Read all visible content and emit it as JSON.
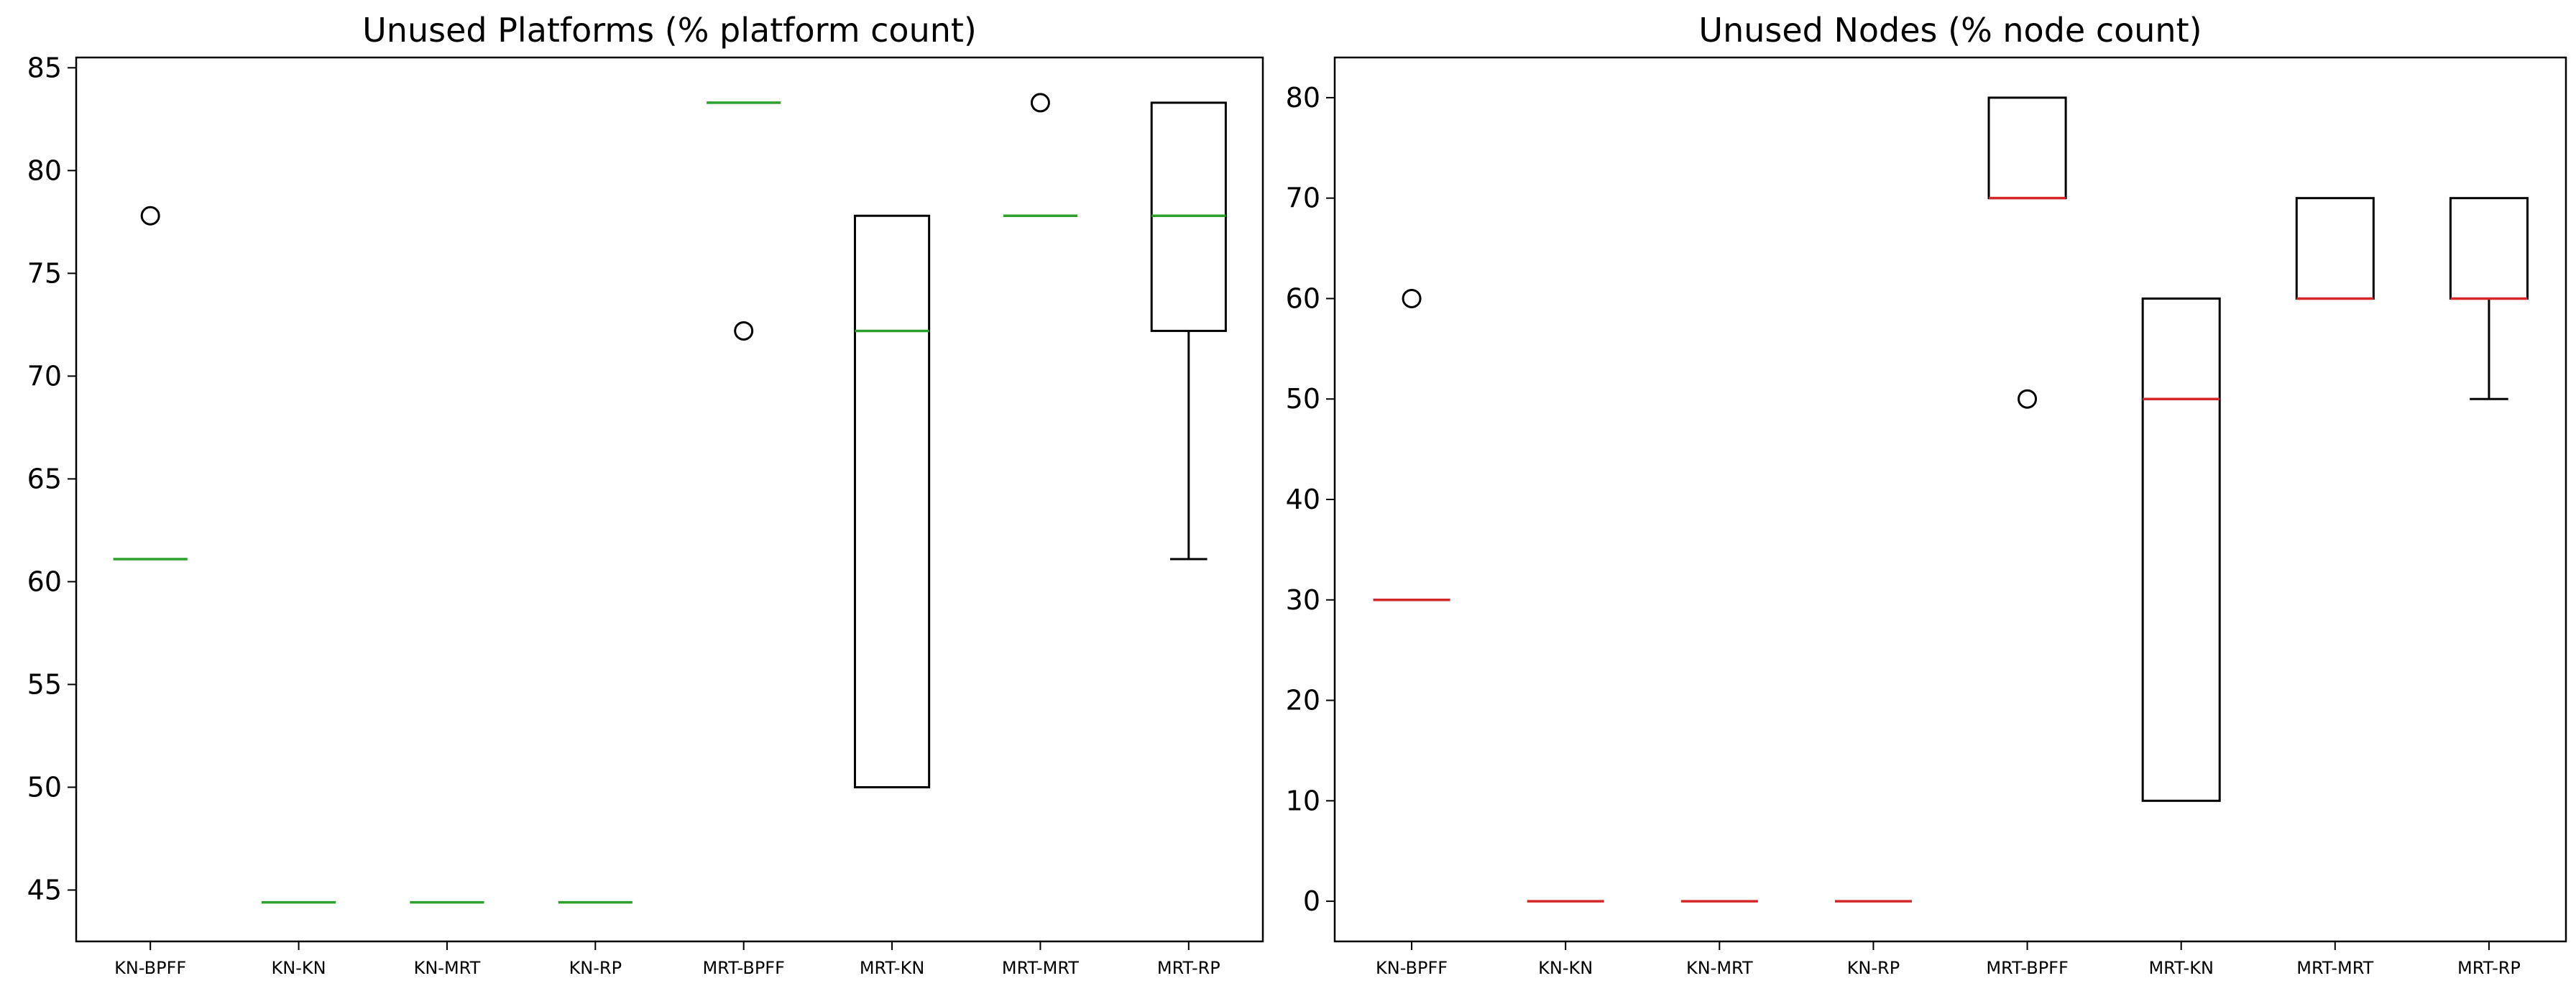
{
  "chart_data": [
    {
      "type": "box",
      "title": "Unused Platforms (% platform count)",
      "xlabel": "",
      "ylabel": "",
      "ylim": [
        42.5,
        85.5
      ],
      "yticks": [
        45,
        50,
        55,
        60,
        65,
        70,
        75,
        80,
        85
      ],
      "median_color": "#2ca02c",
      "grid": false,
      "categories": [
        "KN-BPFF",
        "KN-KN",
        "KN-MRT",
        "KN-RP",
        "MRT-BPFF",
        "MRT-KN",
        "MRT-MRT",
        "MRT-RP"
      ],
      "boxes": [
        {
          "whislo": 61.1,
          "q1": 61.1,
          "med": 61.1,
          "q3": 61.1,
          "whishi": 61.1,
          "fliers": [
            77.8
          ]
        },
        {
          "whislo": 44.4,
          "q1": 44.4,
          "med": 44.4,
          "q3": 44.4,
          "whishi": 44.4,
          "fliers": []
        },
        {
          "whislo": 44.4,
          "q1": 44.4,
          "med": 44.4,
          "q3": 44.4,
          "whishi": 44.4,
          "fliers": []
        },
        {
          "whislo": 44.4,
          "q1": 44.4,
          "med": 44.4,
          "q3": 44.4,
          "whishi": 44.4,
          "fliers": []
        },
        {
          "whislo": 83.3,
          "q1": 83.3,
          "med": 83.3,
          "q3": 83.3,
          "whishi": 83.3,
          "fliers": [
            72.2
          ]
        },
        {
          "whislo": 50.0,
          "q1": 50.0,
          "med": 72.2,
          "q3": 77.8,
          "whishi": 77.8,
          "fliers": []
        },
        {
          "whislo": 77.8,
          "q1": 77.8,
          "med": 77.8,
          "q3": 77.8,
          "whishi": 77.8,
          "fliers": [
            83.3
          ]
        },
        {
          "whislo": 61.1,
          "q1": 72.2,
          "med": 77.8,
          "q3": 83.3,
          "whishi": 83.3,
          "fliers": []
        }
      ]
    },
    {
      "type": "box",
      "title": "Unused Nodes (% node count)",
      "xlabel": "",
      "ylabel": "",
      "ylim": [
        -4,
        84
      ],
      "yticks": [
        0,
        10,
        20,
        30,
        40,
        50,
        60,
        70,
        80
      ],
      "median_color": "#d62728",
      "grid": false,
      "categories": [
        "KN-BPFF",
        "KN-KN",
        "KN-MRT",
        "KN-RP",
        "MRT-BPFF",
        "MRT-KN",
        "MRT-MRT",
        "MRT-RP"
      ],
      "boxes": [
        {
          "whislo": 30,
          "q1": 30,
          "med": 30,
          "q3": 30,
          "whishi": 30,
          "fliers": [
            60
          ]
        },
        {
          "whislo": 0,
          "q1": 0,
          "med": 0,
          "q3": 0,
          "whishi": 0,
          "fliers": []
        },
        {
          "whislo": 0,
          "q1": 0,
          "med": 0,
          "q3": 0,
          "whishi": 0,
          "fliers": []
        },
        {
          "whislo": 0,
          "q1": 0,
          "med": 0,
          "q3": 0,
          "whishi": 0,
          "fliers": []
        },
        {
          "whislo": 70,
          "q1": 70,
          "med": 70,
          "q3": 80,
          "whishi": 80,
          "fliers": [
            50
          ]
        },
        {
          "whislo": 10,
          "q1": 10,
          "med": 50,
          "q3": 60,
          "whishi": 60,
          "fliers": []
        },
        {
          "whislo": 60,
          "q1": 60,
          "med": 60,
          "q3": 70,
          "whishi": 70,
          "fliers": []
        },
        {
          "whislo": 50,
          "q1": 60,
          "med": 60,
          "q3": 70,
          "whishi": 70,
          "fliers": []
        }
      ]
    }
  ]
}
